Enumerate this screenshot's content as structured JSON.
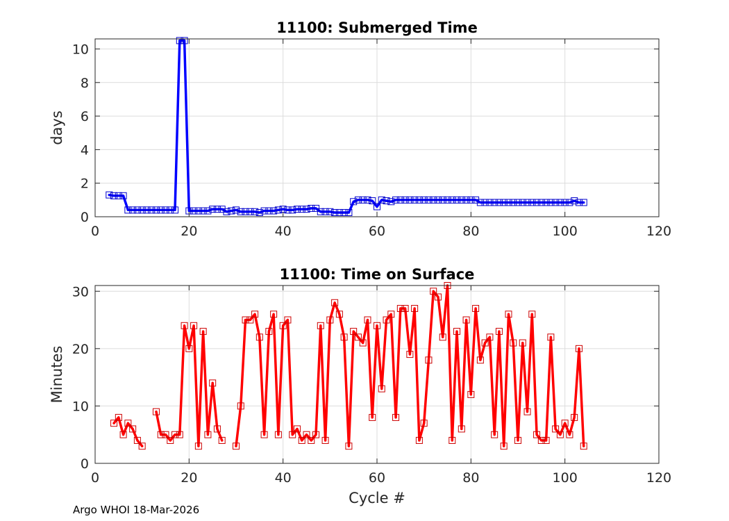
{
  "footer_text": "Argo WHOI 18-Mar-2026",
  "chart_data": [
    {
      "type": "line",
      "title": "11100: Submerged Time",
      "xlabel": "",
      "ylabel": "days",
      "xlim": [
        0,
        120
      ],
      "ylim": [
        0,
        10.6
      ],
      "xticks": [
        0,
        20,
        40,
        60,
        80,
        100,
        120
      ],
      "yticks": [
        0,
        2,
        4,
        6,
        8,
        10
      ],
      "grid": true,
      "color": "#0000ff",
      "marker": "square",
      "series": [
        {
          "x": [
            3,
            4,
            5,
            6,
            7,
            8,
            9,
            10,
            11,
            12,
            13,
            14,
            15,
            16,
            17,
            18,
            19,
            20,
            21,
            22,
            23,
            24,
            25,
            26,
            27,
            28,
            29,
            30,
            31,
            32,
            33,
            34,
            35,
            36,
            37,
            38,
            39,
            40,
            41,
            42,
            43,
            44,
            45,
            46,
            47,
            48,
            49,
            50,
            51,
            52,
            53,
            54,
            55,
            56,
            57,
            58,
            59,
            60,
            61,
            62,
            63,
            64,
            65,
            66,
            67,
            68,
            69,
            70,
            71,
            72,
            73,
            74,
            75,
            76,
            77,
            78,
            79,
            80,
            81,
            82,
            83,
            84,
            85,
            86,
            87,
            88,
            89,
            90,
            91,
            92,
            93,
            94,
            95,
            96,
            97,
            98,
            99,
            100,
            101,
            102,
            103,
            104
          ],
          "y": [
            1.3,
            1.25,
            1.25,
            1.25,
            0.4,
            0.4,
            0.4,
            0.4,
            0.4,
            0.4,
            0.4,
            0.4,
            0.4,
            0.4,
            0.4,
            10.5,
            10.5,
            0.35,
            0.35,
            0.35,
            0.35,
            0.35,
            0.45,
            0.45,
            0.45,
            0.3,
            0.35,
            0.4,
            0.3,
            0.3,
            0.3,
            0.3,
            0.25,
            0.35,
            0.35,
            0.35,
            0.4,
            0.45,
            0.4,
            0.4,
            0.45,
            0.45,
            0.45,
            0.5,
            0.5,
            0.3,
            0.3,
            0.3,
            0.25,
            0.25,
            0.25,
            0.25,
            0.9,
            1.0,
            1.0,
            1.0,
            0.95,
            0.6,
            1.0,
            0.95,
            0.9,
            1.0,
            1.0,
            1.0,
            1.0,
            1.0,
            1.0,
            1.0,
            1.0,
            1.0,
            1.0,
            1.0,
            1.0,
            1.0,
            1.0,
            1.0,
            1.0,
            1.0,
            1.0,
            0.85,
            0.85,
            0.85,
            0.85,
            0.85,
            0.85,
            0.85,
            0.85,
            0.85,
            0.85,
            0.85,
            0.85,
            0.85,
            0.85,
            0.85,
            0.85,
            0.85,
            0.85,
            0.85,
            0.85,
            0.95,
            0.85,
            0.85
          ]
        }
      ]
    },
    {
      "type": "line",
      "title": "11100: Time on Surface",
      "xlabel": "Cycle #",
      "ylabel": "Minutes",
      "xlim": [
        0,
        120
      ],
      "ylim": [
        0,
        31
      ],
      "xticks": [
        0,
        20,
        40,
        60,
        80,
        100,
        120
      ],
      "yticks": [
        0,
        10,
        20,
        30
      ],
      "grid": true,
      "color": "#ff0000",
      "marker": "square",
      "series": [
        {
          "x": [
            4,
            5,
            6,
            7,
            8,
            9,
            10
          ],
          "y": [
            7,
            8,
            5,
            7,
            6,
            4,
            3
          ]
        },
        {
          "x": [
            13,
            14,
            15,
            16,
            17,
            18,
            19,
            20,
            21,
            22,
            23,
            24,
            25,
            26,
            27
          ],
          "y": [
            9,
            5,
            5,
            4,
            5,
            5,
            24,
            20,
            24,
            3,
            23,
            5,
            14,
            6,
            4
          ]
        },
        {
          "x": [
            30,
            31,
            32,
            33,
            34,
            35,
            36,
            37,
            38,
            39,
            40,
            41,
            42,
            43,
            44,
            45,
            46,
            47,
            48,
            49,
            50,
            51,
            52,
            53,
            54,
            55,
            56,
            57,
            58,
            59,
            60,
            61,
            62,
            63,
            64,
            65,
            66,
            67,
            68,
            69,
            70,
            71,
            72,
            73,
            74,
            75,
            76,
            77,
            78,
            79,
            80,
            81,
            82,
            83,
            84,
            85,
            86,
            87,
            88,
            89,
            90,
            91,
            92,
            93,
            94,
            95,
            96,
            97,
            98,
            99,
            100,
            101,
            102,
            103,
            104
          ],
          "y": [
            3,
            10,
            25,
            25,
            26,
            22,
            5,
            23,
            26,
            5,
            24,
            25,
            5,
            6,
            4,
            5,
            4,
            5,
            24,
            4,
            25,
            28,
            26,
            22,
            3,
            23,
            22,
            21,
            25,
            8,
            24,
            13,
            25,
            26,
            8,
            27,
            27,
            19,
            27,
            4,
            7,
            18,
            30,
            29,
            22,
            31,
            4,
            23,
            6,
            25,
            12,
            27,
            18,
            21,
            22,
            5,
            23,
            3,
            26,
            21,
            4,
            21,
            9,
            26,
            5,
            4,
            4,
            22,
            6,
            5,
            7,
            5,
            8,
            20,
            3
          ]
        }
      ]
    }
  ]
}
